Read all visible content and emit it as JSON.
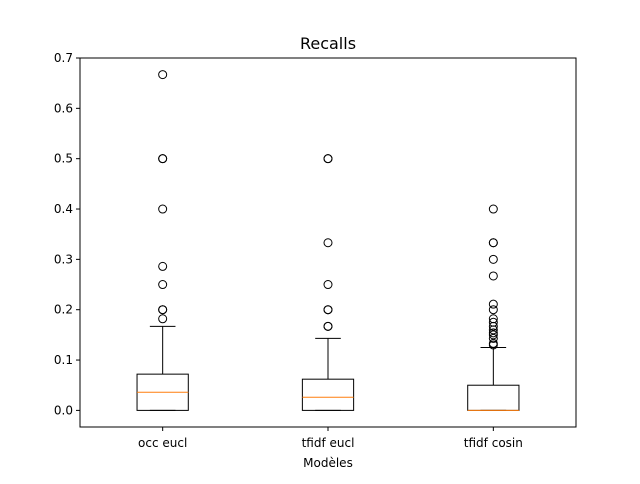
{
  "chart_data": {
    "type": "box",
    "title": "Recalls",
    "xlabel": "Modèles",
    "ylabel": "",
    "ylim": [
      -0.033,
      0.7
    ],
    "yticks": [
      {
        "value": 0.0,
        "label": "0.0"
      },
      {
        "value": 0.1,
        "label": "0.1"
      },
      {
        "value": 0.2,
        "label": "0.2"
      },
      {
        "value": 0.3,
        "label": "0.3"
      },
      {
        "value": 0.4,
        "label": "0.4"
      },
      {
        "value": 0.5,
        "label": "0.5"
      },
      {
        "value": 0.6,
        "label": "0.6"
      },
      {
        "value": 0.7,
        "label": "0.7"
      }
    ],
    "grid": false,
    "legend": "none",
    "categories": [
      "occ eucl",
      "tfidf eucl",
      "tfidf cosin"
    ],
    "boxes": [
      {
        "name": "occ eucl",
        "whisker_low": 0.0,
        "q1": 0.0,
        "median": 0.036,
        "q3": 0.072,
        "whisker_high": 0.167,
        "outliers": [
          0.182,
          0.2,
          0.2,
          0.25,
          0.286,
          0.4,
          0.5,
          0.5,
          0.667
        ]
      },
      {
        "name": "tfidf eucl",
        "whisker_low": 0.0,
        "q1": 0.0,
        "median": 0.026,
        "q3": 0.062,
        "whisker_high": 0.143,
        "outliers": [
          0.167,
          0.167,
          0.2,
          0.2,
          0.25,
          0.333,
          0.5,
          0.5
        ]
      },
      {
        "name": "tfidf cosin",
        "whisker_low": 0.0,
        "q1": 0.0,
        "median": 0.0,
        "q3": 0.05,
        "whisker_high": 0.125,
        "outliers": [
          0.13,
          0.133,
          0.143,
          0.15,
          0.154,
          0.16,
          0.167,
          0.175,
          0.182,
          0.2,
          0.211,
          0.267,
          0.3,
          0.333,
          0.333,
          0.4
        ]
      }
    ],
    "colors": {
      "box": "#000000",
      "median": "#ff7f0e",
      "outlier": "#000000",
      "background": "#ffffff"
    }
  }
}
